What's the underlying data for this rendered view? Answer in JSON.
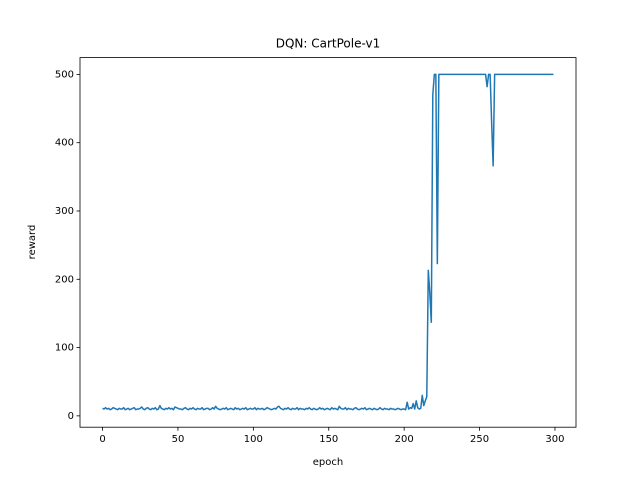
{
  "chart_data": {
    "type": "line",
    "title": "DQN: CartPole-v1",
    "x_label": "epoch",
    "y_label": "reward",
    "x": [
      0,
      1,
      2,
      3,
      4,
      5,
      6,
      7,
      8,
      9,
      10,
      11,
      12,
      13,
      14,
      15,
      16,
      17,
      18,
      19,
      20,
      21,
      22,
      23,
      24,
      25,
      26,
      27,
      28,
      29,
      30,
      31,
      32,
      33,
      34,
      35,
      36,
      37,
      38,
      39,
      40,
      41,
      42,
      43,
      44,
      45,
      46,
      47,
      48,
      49,
      50,
      51,
      52,
      53,
      54,
      55,
      56,
      57,
      58,
      59,
      60,
      61,
      62,
      63,
      64,
      65,
      66,
      67,
      68,
      69,
      70,
      71,
      72,
      73,
      74,
      75,
      76,
      77,
      78,
      79,
      80,
      81,
      82,
      83,
      84,
      85,
      86,
      87,
      88,
      89,
      90,
      91,
      92,
      93,
      94,
      95,
      96,
      97,
      98,
      99,
      100,
      101,
      102,
      103,
      104,
      105,
      106,
      107,
      108,
      109,
      110,
      111,
      112,
      113,
      114,
      115,
      116,
      117,
      118,
      119,
      120,
      121,
      122,
      123,
      124,
      125,
      126,
      127,
      128,
      129,
      130,
      131,
      132,
      133,
      134,
      135,
      136,
      137,
      138,
      139,
      140,
      141,
      142,
      143,
      144,
      145,
      146,
      147,
      148,
      149,
      150,
      151,
      152,
      153,
      154,
      155,
      156,
      157,
      158,
      159,
      160,
      161,
      162,
      163,
      164,
      165,
      166,
      167,
      168,
      169,
      170,
      171,
      172,
      173,
      174,
      175,
      176,
      177,
      178,
      179,
      180,
      181,
      182,
      183,
      184,
      185,
      186,
      187,
      188,
      189,
      190,
      191,
      192,
      193,
      194,
      195,
      196,
      197,
      198,
      199,
      200,
      201,
      202,
      203,
      204,
      205,
      206,
      207,
      208,
      209,
      210,
      211,
      212,
      213,
      214,
      215,
      216,
      217,
      218,
      219,
      220,
      221,
      222,
      223,
      224,
      225,
      226,
      227,
      228,
      229,
      230,
      231,
      232,
      233,
      234,
      235,
      236,
      237,
      238,
      239,
      240,
      241,
      242,
      243,
      244,
      245,
      246,
      247,
      248,
      249,
      250,
      251,
      252,
      253,
      254,
      255,
      256,
      257,
      258,
      259,
      260,
      261,
      262,
      263,
      264,
      265,
      266,
      267,
      268,
      269,
      270,
      271,
      272,
      273,
      274,
      275,
      276,
      277,
      278,
      279,
      280,
      281,
      282,
      283,
      284,
      285,
      286,
      287,
      288,
      289,
      290,
      291,
      292,
      293,
      294,
      295,
      296,
      297,
      298,
      299
    ],
    "series": [
      {
        "color": "#1f77b4",
        "values": [
          11,
          10,
          12,
          10,
          11,
          9,
          10,
          12,
          11,
          10,
          9,
          11,
          10,
          10,
          12,
          9,
          10,
          11,
          9,
          10,
          11,
          12,
          9,
          10,
          10,
          11,
          13,
          10,
          9,
          11,
          12,
          10,
          9,
          11,
          10,
          12,
          9,
          10,
          15,
          11,
          10,
          9,
          11,
          10,
          12,
          10,
          11,
          9,
          13,
          12,
          11,
          10,
          10,
          9,
          11,
          12,
          10,
          9,
          11,
          10,
          12,
          10,
          9,
          11,
          10,
          10,
          12,
          9,
          10,
          11,
          11,
          9,
          10,
          12,
          10,
          14,
          11,
          10,
          9,
          10,
          11,
          10,
          12,
          9,
          10,
          11,
          10,
          9,
          12,
          10,
          11,
          9,
          10,
          11,
          10,
          12,
          9,
          10,
          11,
          10,
          10,
          12,
          9,
          11,
          10,
          10,
          11,
          9,
          10,
          12,
          11,
          10,
          9,
          10,
          11,
          10,
          13,
          14,
          11,
          10,
          9,
          11,
          10,
          12,
          10,
          9,
          11,
          10,
          10,
          12,
          9,
          11,
          10,
          10,
          9,
          11,
          10,
          12,
          10,
          9,
          11,
          10,
          9,
          10,
          12,
          10,
          11,
          9,
          10,
          11,
          10,
          9,
          12,
          10,
          11,
          10,
          9,
          14,
          11,
          10,
          10,
          12,
          9,
          11,
          10,
          10,
          9,
          11,
          12,
          10,
          9,
          10,
          11,
          10,
          12,
          9,
          10,
          11,
          10,
          9,
          11,
          10,
          9,
          10,
          12,
          10,
          9,
          11,
          10,
          10,
          9,
          11,
          10,
          10,
          9,
          10,
          11,
          10,
          9,
          10,
          10,
          9,
          20,
          10,
          12,
          11,
          18,
          10,
          22,
          12,
          10,
          11,
          30,
          15,
          22,
          28,
          213,
          180,
          137,
          470,
          500,
          500,
          223,
          500,
          500,
          500,
          500,
          500,
          500,
          500,
          500,
          500,
          500,
          500,
          500,
          500,
          500,
          500,
          500,
          500,
          500,
          500,
          500,
          500,
          500,
          500,
          500,
          500,
          500,
          500,
          500,
          500,
          500,
          500,
          500,
          482,
          500,
          500,
          430,
          366,
          500,
          500,
          500,
          500,
          500,
          500,
          500,
          500,
          500,
          500,
          500,
          500,
          500,
          500,
          500,
          500,
          500,
          500,
          500,
          500,
          500,
          500,
          500,
          500,
          500,
          500,
          500,
          500,
          500,
          500,
          500,
          500,
          500,
          500,
          500,
          500,
          500,
          500,
          500,
          500
        ]
      }
    ],
    "xlim": [
      -14.95,
      313.95
    ],
    "ylim": [
      -16.6,
      524.6
    ],
    "xticks": [
      0,
      50,
      100,
      150,
      200,
      250,
      300
    ],
    "yticks": [
      0,
      100,
      200,
      300,
      400,
      500
    ]
  }
}
